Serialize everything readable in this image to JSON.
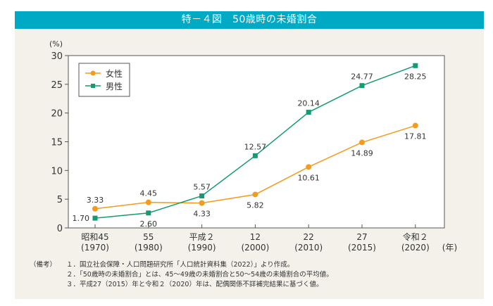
{
  "header": {
    "title": "特－４図　50歳時の未婚割合"
  },
  "chart_data": {
    "type": "line",
    "title": "50歳時の未婚割合",
    "ylabel": "(%)",
    "xlabel": "(年)",
    "ylim": [
      0,
      30
    ],
    "yticks": [
      0,
      5,
      10,
      15,
      20,
      25,
      30
    ],
    "grid": false,
    "legend_position": "top-left",
    "categories": [
      {
        "era": "昭和45",
        "year": "(1970)"
      },
      {
        "era": "55",
        "year": "(1980)"
      },
      {
        "era": "平成２",
        "year": "(1990)"
      },
      {
        "era": "12",
        "year": "(2000)"
      },
      {
        "era": "22",
        "year": "(2010)"
      },
      {
        "era": "27",
        "year": "(2015)"
      },
      {
        "era": "令和２",
        "year": "(2020)"
      }
    ],
    "series": [
      {
        "name": "女性",
        "color": "#f29b1c",
        "marker": "circle",
        "values": [
          3.33,
          4.45,
          4.33,
          5.82,
          10.61,
          14.89,
          17.81
        ],
        "labels": [
          "3.33",
          "4.45",
          "4.33",
          "5.82",
          "10.61",
          "14.89",
          "17.81"
        ],
        "label_pos": [
          "above",
          "above",
          "below",
          "below",
          "below",
          "below",
          "below"
        ]
      },
      {
        "name": "男性",
        "color": "#169a72",
        "marker": "square",
        "values": [
          1.7,
          2.6,
          5.57,
          12.57,
          20.14,
          24.77,
          28.25
        ],
        "labels": [
          "1.70",
          "2.60",
          "5.57",
          "12.57",
          "20.14",
          "24.77",
          "28.25"
        ],
        "label_pos": [
          "left",
          "below",
          "above",
          "above",
          "above",
          "above",
          "below"
        ]
      }
    ]
  },
  "notes": {
    "label": "（備考）",
    "items": [
      "１．国立社会保障・人口問題研究所「人口統計資料集（2022）」より作成。",
      "２．「50歳時の未婚割合」とは、45～49歳の未婚割合と50～54歳の未婚割合の平均値。",
      "３．平成27（2015）年と令和２（2020）年は、配偶関係不詳補完結果に基づく値。"
    ]
  }
}
